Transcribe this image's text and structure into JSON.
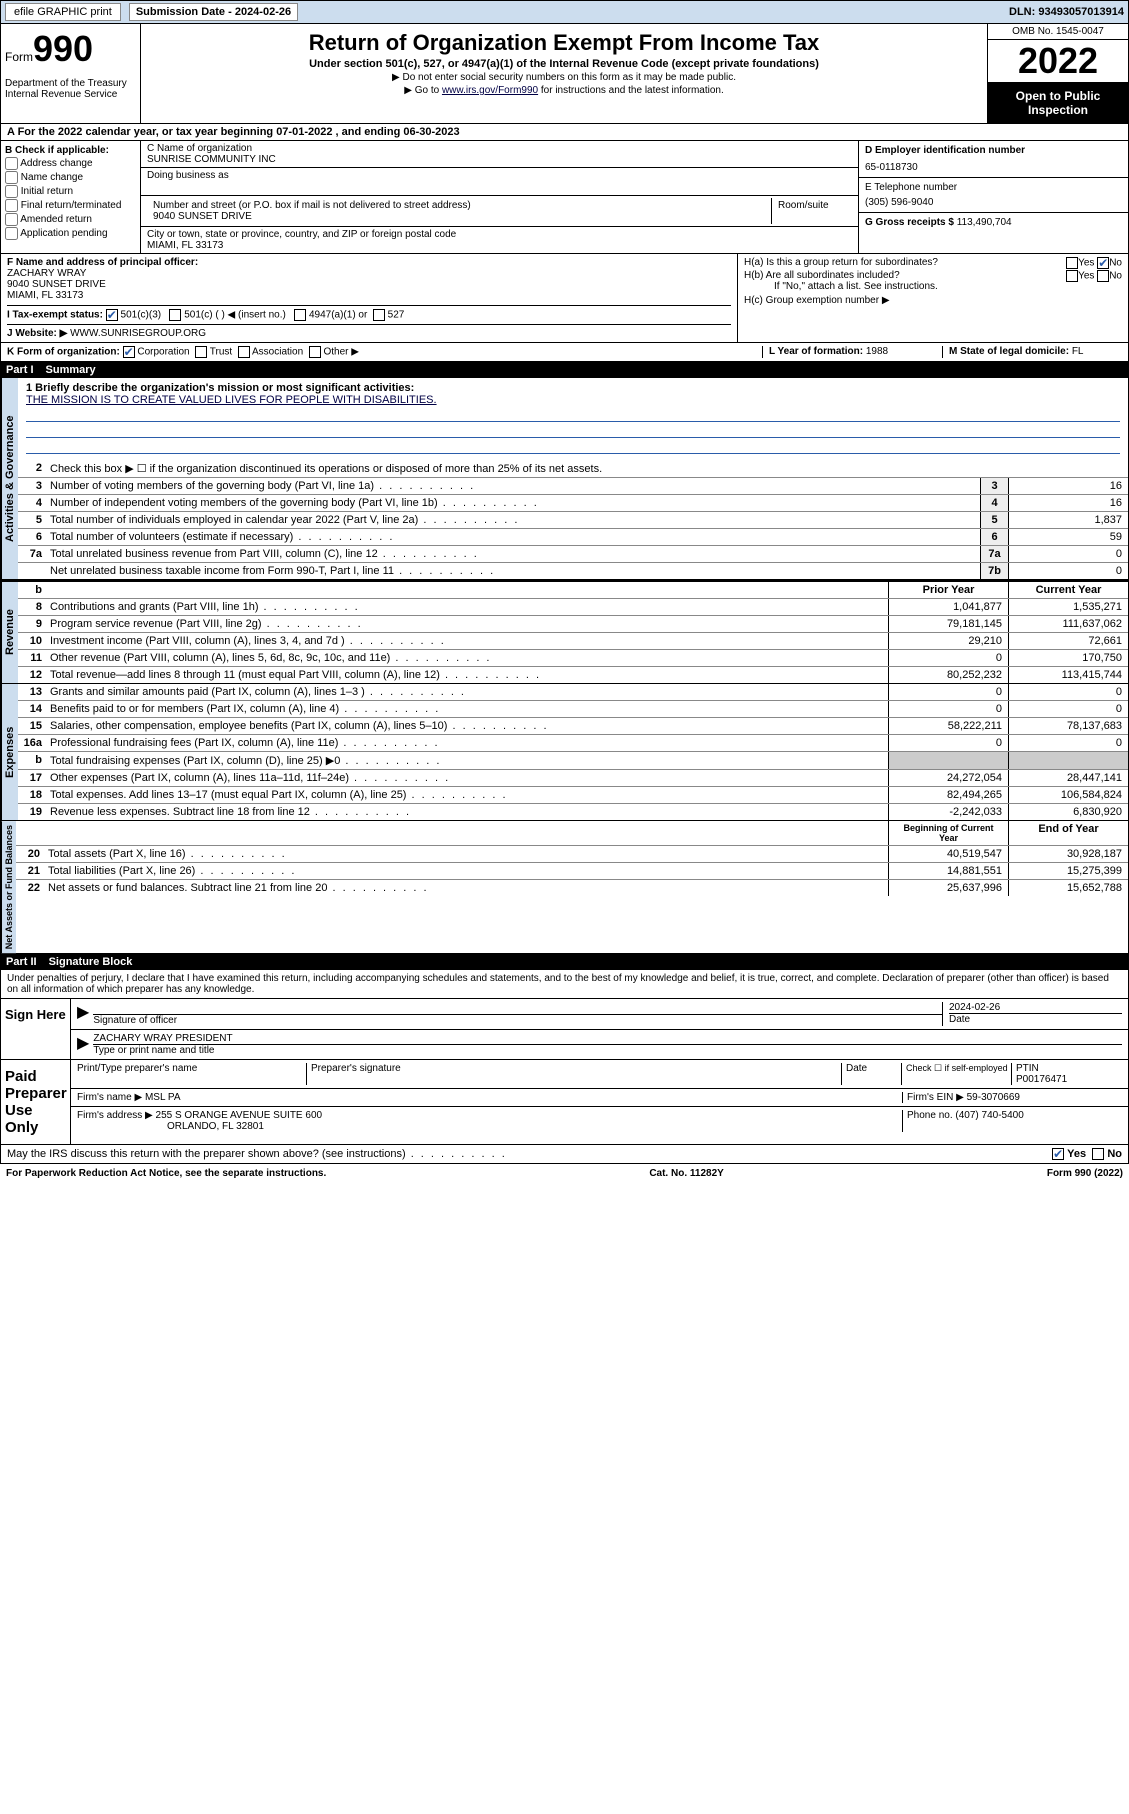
{
  "topbar": {
    "efile": "efile GRAPHIC print",
    "sub_label": "Submission Date - 2024-02-26",
    "dln": "DLN: 93493057013914"
  },
  "header": {
    "form_word": "Form",
    "form_num": "990",
    "dept": "Department of the Treasury\nInternal Revenue Service",
    "title": "Return of Organization Exempt From Income Tax",
    "subtitle": "Under section 501(c), 527, or 4947(a)(1) of the Internal Revenue Code (except private foundations)",
    "note1": "▶ Do not enter social security numbers on this form as it may be made public.",
    "note2_pre": "▶ Go to ",
    "note2_link": "www.irs.gov/Form990",
    "note2_post": " for instructions and the latest information.",
    "omb": "OMB No. 1545-0047",
    "year": "2022",
    "open": "Open to Public Inspection"
  },
  "line_a": "A For the 2022 calendar year, or tax year beginning 07-01-2022   , and ending 06-30-2023",
  "box_b": {
    "label": "B Check if applicable:",
    "items": [
      "Address change",
      "Name change",
      "Initial return",
      "Final return/terminated",
      "Amended return",
      "Application pending"
    ]
  },
  "box_c": {
    "name_label": "C Name of organization",
    "name": "SUNRISE COMMUNITY INC",
    "dba_label": "Doing business as",
    "addr_label": "Number and street (or P.O. box if mail is not delivered to street address)",
    "room_label": "Room/suite",
    "addr": "9040 SUNSET DRIVE",
    "city_label": "City or town, state or province, country, and ZIP or foreign postal code",
    "city": "MIAMI, FL  33173"
  },
  "box_d": {
    "label": "D Employer identification number",
    "value": "65-0118730"
  },
  "box_e": {
    "label": "E Telephone number",
    "value": "(305) 596-9040"
  },
  "box_g": {
    "label": "G Gross receipts $",
    "value": "113,490,704"
  },
  "box_f": {
    "label": "F  Name and address of principal officer:",
    "name": "ZACHARY WRAY",
    "addr": "9040 SUNSET DRIVE",
    "city": "MIAMI, FL  33173"
  },
  "box_h": {
    "a": "H(a)  Is this a group return for subordinates?",
    "a_yes": "Yes",
    "a_no": "No",
    "b": "H(b)  Are all subordinates included?",
    "b_note": "If \"No,\" attach a list. See instructions.",
    "c": "H(c)  Group exemption number ▶"
  },
  "line_i": {
    "label": "I   Tax-exempt status:",
    "o1": "501(c)(3)",
    "o2": "501(c) (   ) ◀ (insert no.)",
    "o3": "4947(a)(1) or",
    "o4": "527"
  },
  "line_j": {
    "label": "J   Website: ▶",
    "value": "WWW.SUNRISEGROUP.ORG"
  },
  "line_k": {
    "label": "K Form of organization:",
    "o1": "Corporation",
    "o2": "Trust",
    "o3": "Association",
    "o4": "Other ▶"
  },
  "line_l": {
    "label": "L Year of formation:",
    "value": "1988"
  },
  "line_m": {
    "label": "M State of legal domicile:",
    "value": "FL"
  },
  "part1": {
    "part": "Part I",
    "title": "Summary"
  },
  "mission": {
    "q": "1   Briefly describe the organization's mission or most significant activities:",
    "text": "THE MISSION IS TO CREATE VALUED LIVES FOR PEOPLE WITH DISABILITIES."
  },
  "line2": "Check this box ▶ ☐ if the organization discontinued its operations or disposed of more than 25% of its net assets.",
  "gov_tab": "Activities & Governance",
  "gov_lines": [
    {
      "n": "3",
      "t": "Number of voting members of the governing body (Part VI, line 1a)",
      "b": "3",
      "v": "16"
    },
    {
      "n": "4",
      "t": "Number of independent voting members of the governing body (Part VI, line 1b)",
      "b": "4",
      "v": "16"
    },
    {
      "n": "5",
      "t": "Total number of individuals employed in calendar year 2022 (Part V, line 2a)",
      "b": "5",
      "v": "1,837"
    },
    {
      "n": "6",
      "t": "Total number of volunteers (estimate if necessary)",
      "b": "6",
      "v": "59"
    },
    {
      "n": "7a",
      "t": "Total unrelated business revenue from Part VIII, column (C), line 12",
      "b": "7a",
      "v": "0"
    },
    {
      "n": "",
      "t": "Net unrelated business taxable income from Form 990-T, Part I, line 11",
      "b": "7b",
      "v": "0"
    }
  ],
  "rev_tab": "Revenue",
  "col_prior": "Prior Year",
  "col_curr": "Current Year",
  "rev_lines": [
    {
      "n": "8",
      "t": "Contributions and grants (Part VIII, line 1h)",
      "p": "1,041,877",
      "c": "1,535,271"
    },
    {
      "n": "9",
      "t": "Program service revenue (Part VIII, line 2g)",
      "p": "79,181,145",
      "c": "111,637,062"
    },
    {
      "n": "10",
      "t": "Investment income (Part VIII, column (A), lines 3, 4, and 7d )",
      "p": "29,210",
      "c": "72,661"
    },
    {
      "n": "11",
      "t": "Other revenue (Part VIII, column (A), lines 5, 6d, 8c, 9c, 10c, and 11e)",
      "p": "0",
      "c": "170,750"
    },
    {
      "n": "12",
      "t": "Total revenue—add lines 8 through 11 (must equal Part VIII, column (A), line 12)",
      "p": "80,252,232",
      "c": "113,415,744"
    }
  ],
  "exp_tab": "Expenses",
  "exp_lines": [
    {
      "n": "13",
      "t": "Grants and similar amounts paid (Part IX, column (A), lines 1–3 )",
      "p": "0",
      "c": "0"
    },
    {
      "n": "14",
      "t": "Benefits paid to or for members (Part IX, column (A), line 4)",
      "p": "0",
      "c": "0"
    },
    {
      "n": "15",
      "t": "Salaries, other compensation, employee benefits (Part IX, column (A), lines 5–10)",
      "p": "58,222,211",
      "c": "78,137,683"
    },
    {
      "n": "16a",
      "t": "Professional fundraising fees (Part IX, column (A), line 11e)",
      "p": "0",
      "c": "0"
    },
    {
      "n": "b",
      "t": "Total fundraising expenses (Part IX, column (D), line 25) ▶0",
      "p": "",
      "c": "",
      "shade": true
    },
    {
      "n": "17",
      "t": "Other expenses (Part IX, column (A), lines 11a–11d, 11f–24e)",
      "p": "24,272,054",
      "c": "28,447,141"
    },
    {
      "n": "18",
      "t": "Total expenses. Add lines 13–17 (must equal Part IX, column (A), line 25)",
      "p": "82,494,265",
      "c": "106,584,824"
    },
    {
      "n": "19",
      "t": "Revenue less expenses. Subtract line 18 from line 12",
      "p": "-2,242,033",
      "c": "6,830,920"
    }
  ],
  "net_tab": "Net Assets or Fund Balances",
  "col_beg": "Beginning of Current Year",
  "col_end": "End of Year",
  "net_lines": [
    {
      "n": "20",
      "t": "Total assets (Part X, line 16)",
      "p": "40,519,547",
      "c": "30,928,187"
    },
    {
      "n": "21",
      "t": "Total liabilities (Part X, line 26)",
      "p": "14,881,551",
      "c": "15,275,399"
    },
    {
      "n": "22",
      "t": "Net assets or fund balances. Subtract line 21 from line 20",
      "p": "25,637,996",
      "c": "15,652,788"
    }
  ],
  "part2": {
    "part": "Part II",
    "title": "Signature Block"
  },
  "sig_decl": "Under penalties of perjury, I declare that I have examined this return, including accompanying schedules and statements, and to the best of my knowledge and belief, it is true, correct, and complete. Declaration of preparer (other than officer) is based on all information of which preparer has any knowledge.",
  "sign_here": "Sign Here",
  "sig_officer": {
    "sig_label": "Signature of officer",
    "date_label": "Date",
    "date": "2024-02-26",
    "name": "ZACHARY WRAY PRESIDENT",
    "name_label": "Type or print name and title"
  },
  "paid": {
    "label": "Paid Preparer Use Only",
    "name_label": "Print/Type preparer's name",
    "sig_label": "Preparer's signature",
    "date_label": "Date",
    "check_label": "Check ☐ if self-employed",
    "ptin_label": "PTIN",
    "ptin": "P00176471",
    "firm_label": "Firm's name  ▶",
    "firm": "MSL PA",
    "ein_label": "Firm's EIN ▶",
    "ein": "59-3070669",
    "addr_label": "Firm's address ▶",
    "addr": "255 S ORANGE AVENUE SUITE 600",
    "city": "ORLANDO, FL  32801",
    "phone_label": "Phone no.",
    "phone": "(407) 740-5400"
  },
  "discuss": {
    "q": "May the IRS discuss this return with the preparer shown above? (see instructions)",
    "yes": "Yes",
    "no": "No"
  },
  "footer": {
    "left": "For Paperwork Reduction Act Notice, see the separate instructions.",
    "mid": "Cat. No. 11282Y",
    "right": "Form 990 (2022)"
  }
}
